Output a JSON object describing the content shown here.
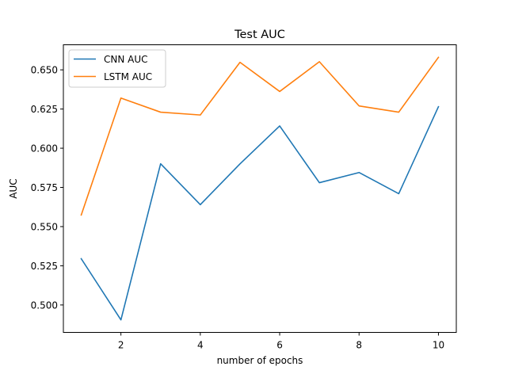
{
  "chart_data": {
    "type": "line",
    "title": "Test AUC",
    "xlabel": "number of epochs",
    "ylabel": "AUC",
    "x": [
      1,
      2,
      3,
      4,
      5,
      6,
      7,
      8,
      9,
      10
    ],
    "xlim": [
      0.55,
      10.45
    ],
    "ylim": [
      0.4825,
      0.666
    ],
    "xticks": [
      2,
      4,
      6,
      8,
      10
    ],
    "xtick_labels": [
      "2",
      "4",
      "6",
      "8",
      "10"
    ],
    "yticks": [
      0.5,
      0.525,
      0.55,
      0.575,
      0.6,
      0.625,
      0.65
    ],
    "ytick_labels": [
      "0.500",
      "0.525",
      "0.550",
      "0.575",
      "0.600",
      "0.625",
      "0.650"
    ],
    "grid": false,
    "legend_position": "upper-left",
    "series": [
      {
        "name": "CNN AUC",
        "color": "#1f77b4",
        "values": [
          0.5295,
          0.4905,
          0.5901,
          0.564,
          0.59,
          0.6142,
          0.578,
          0.5845,
          0.571,
          0.6265
        ]
      },
      {
        "name": "LSTM AUC",
        "color": "#ff7f0e",
        "values": [
          0.5574,
          0.632,
          0.623,
          0.6212,
          0.6548,
          0.6362,
          0.6552,
          0.627,
          0.623,
          0.658
        ]
      }
    ]
  }
}
